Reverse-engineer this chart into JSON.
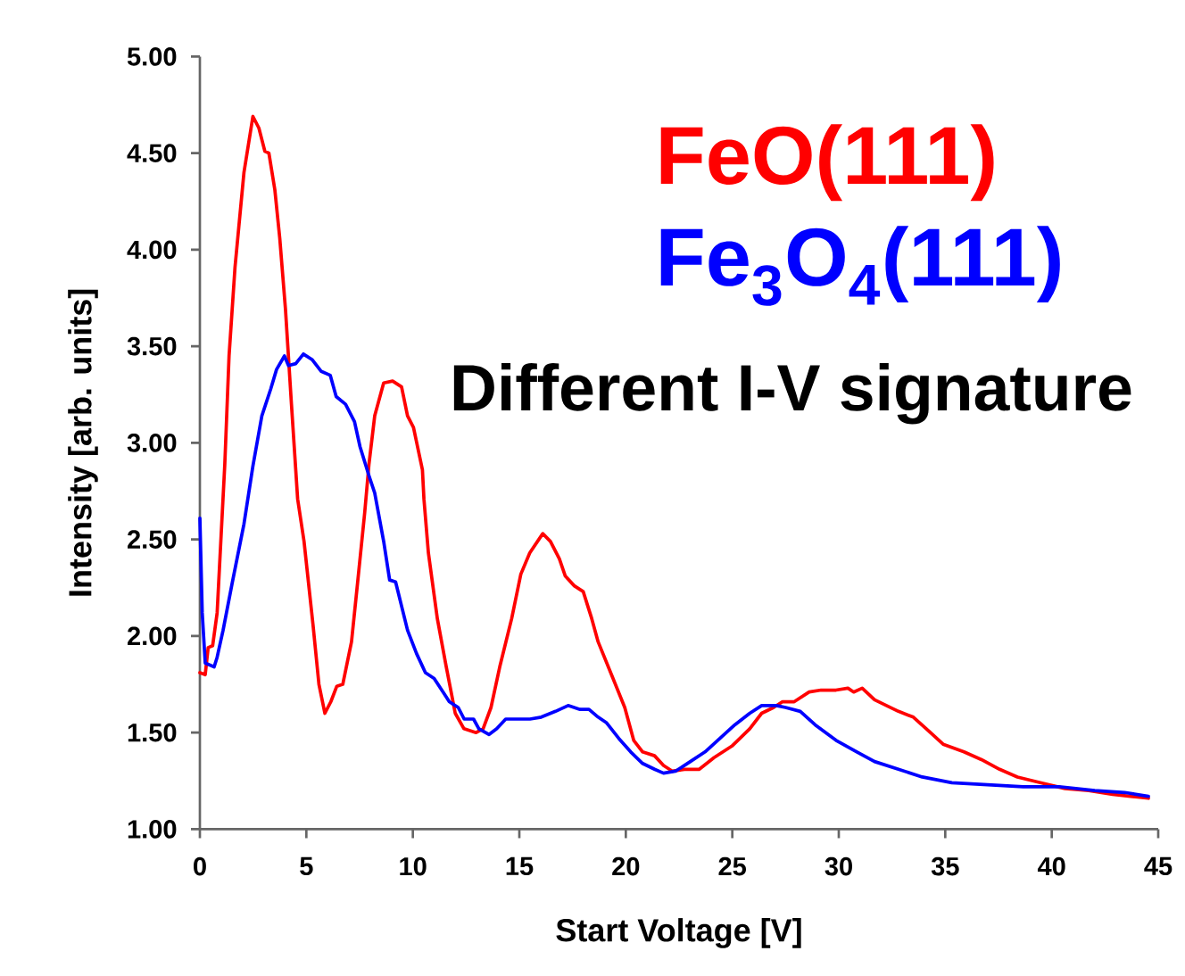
{
  "chart_data": {
    "type": "line",
    "xlabel": "Start Voltage [V]",
    "ylabel": "Intensity [arb. units]",
    "annotations": [
      "Different I-V signature"
    ],
    "xlim": [
      0,
      45
    ],
    "ylim": [
      1,
      5
    ],
    "xticks": [
      0,
      5,
      10,
      15,
      20,
      25,
      30,
      35,
      40,
      45
    ],
    "yticks": [
      {
        "value": 1,
        "label": "1.00"
      },
      {
        "value": 1.5,
        "label": "1.50"
      },
      {
        "value": 2,
        "label": "2.00"
      },
      {
        "value": 2.5,
        "label": "2.50"
      },
      {
        "value": 3,
        "label": "3.00"
      },
      {
        "value": 3.5,
        "label": "3.50"
      },
      {
        "value": 4,
        "label": "4.00"
      },
      {
        "value": 4.5,
        "label": "4.50"
      },
      {
        "value": 5,
        "label": "5.00"
      }
    ],
    "legend": "top right",
    "series": [
      {
        "name": "FeO(111)",
        "color": "#ff0000",
        "x": [
          0,
          0.25,
          0.39,
          0.6,
          0.81,
          1.17,
          1.37,
          1.65,
          2.07,
          2.49,
          2.77,
          3.05,
          3.24,
          3.52,
          3.75,
          4.02,
          4.3,
          4.59,
          4.89,
          5.31,
          5.59,
          5.87,
          6.15,
          6.43,
          6.71,
          7.12,
          7.4,
          7.74,
          7.94,
          8.21,
          8.63,
          9.05,
          9.47,
          9.75,
          10.03,
          10.45,
          10.52,
          10.73,
          11.15,
          11.57,
          11.99,
          12.4,
          12.97,
          13.3,
          13.67,
          14.08,
          14.64,
          15.07,
          15.49,
          16.1,
          16.46,
          16.88,
          17.16,
          17.58,
          18.0,
          18.4,
          18.7,
          19.4,
          19.95,
          20.37,
          20.79,
          21.35,
          21.77,
          22.19,
          22.75,
          23.45,
          24.14,
          24.98,
          25.82,
          26.38,
          26.94,
          27.36,
          27.91,
          28.61,
          29.17,
          29.87,
          30.43,
          30.7,
          31.1,
          31.68,
          32.24,
          32.8,
          33.5,
          34.2,
          34.9,
          35.88,
          36.7,
          37.55,
          38.39,
          39.5,
          40.62,
          41.74,
          42.86,
          43.7,
          44.54
        ],
        "values": [
          1.81,
          1.8,
          1.94,
          1.95,
          2.12,
          2.89,
          3.45,
          3.91,
          4.4,
          4.69,
          4.63,
          4.51,
          4.5,
          4.31,
          4.06,
          3.69,
          3.2,
          2.71,
          2.49,
          2.06,
          1.75,
          1.6,
          1.66,
          1.74,
          1.75,
          1.97,
          2.27,
          2.64,
          2.89,
          3.14,
          3.31,
          3.32,
          3.29,
          3.14,
          3.08,
          2.86,
          2.71,
          2.43,
          2.09,
          1.84,
          1.6,
          1.52,
          1.5,
          1.52,
          1.63,
          1.84,
          2.09,
          2.32,
          2.43,
          2.53,
          2.49,
          2.4,
          2.31,
          2.26,
          2.23,
          2.09,
          1.97,
          1.78,
          1.63,
          1.46,
          1.4,
          1.38,
          1.33,
          1.3,
          1.31,
          1.31,
          1.37,
          1.43,
          1.52,
          1.6,
          1.63,
          1.66,
          1.66,
          1.71,
          1.72,
          1.72,
          1.73,
          1.71,
          1.73,
          1.67,
          1.64,
          1.61,
          1.58,
          1.51,
          1.44,
          1.4,
          1.36,
          1.31,
          1.27,
          1.24,
          1.21,
          1.2,
          1.18,
          1.17,
          1.16
        ]
      },
      {
        "name": "Fe$_{3}$O$_{4}$(111)",
        "color": "#0000ff",
        "x": [
          0,
          0.11,
          0.25,
          0.67,
          0.81,
          1.09,
          1.51,
          2.07,
          2.49,
          2.91,
          3.33,
          3.6,
          3.97,
          4.16,
          4.5,
          4.86,
          5.28,
          5.7,
          6.12,
          6.4,
          6.84,
          7.26,
          7.52,
          7.94,
          8.21,
          8.63,
          8.91,
          9.19,
          9.75,
          10.17,
          10.59,
          11.0,
          11.42,
          11.71,
          12.13,
          12.41,
          12.85,
          13.1,
          13.58,
          13.94,
          14.36,
          15.0,
          15.5,
          16.03,
          16.7,
          17.29,
          17.85,
          18.27,
          18.7,
          19.1,
          19.67,
          20.23,
          20.79,
          21.35,
          21.77,
          22.33,
          23.03,
          23.72,
          24.42,
          25.12,
          25.82,
          26.38,
          27.07,
          27.5,
          28.19,
          28.89,
          29.87,
          30.85,
          31.68,
          32.8,
          33.92,
          35.31,
          36.99,
          38.66,
          40.34,
          42.02,
          43.42,
          44.54
        ],
        "values": [
          2.61,
          2.12,
          1.86,
          1.84,
          1.89,
          2.03,
          2.27,
          2.58,
          2.88,
          3.14,
          3.28,
          3.38,
          3.45,
          3.4,
          3.41,
          3.46,
          3.43,
          3.37,
          3.35,
          3.24,
          3.2,
          3.11,
          2.98,
          2.83,
          2.74,
          2.49,
          2.29,
          2.28,
          2.03,
          1.91,
          1.81,
          1.78,
          1.71,
          1.66,
          1.63,
          1.57,
          1.57,
          1.52,
          1.49,
          1.52,
          1.57,
          1.57,
          1.57,
          1.58,
          1.61,
          1.64,
          1.62,
          1.62,
          1.58,
          1.55,
          1.47,
          1.4,
          1.34,
          1.31,
          1.29,
          1.3,
          1.35,
          1.4,
          1.47,
          1.54,
          1.6,
          1.64,
          1.64,
          1.63,
          1.61,
          1.54,
          1.46,
          1.4,
          1.35,
          1.31,
          1.27,
          1.24,
          1.23,
          1.22,
          1.22,
          1.2,
          1.19,
          1.17
        ]
      }
    ]
  }
}
